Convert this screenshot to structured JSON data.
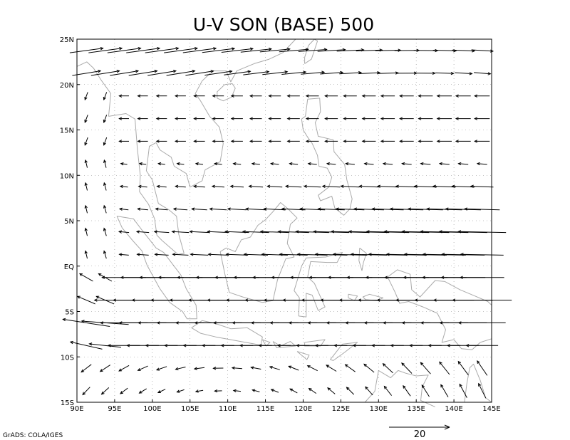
{
  "title": "U-V SON (BASE) 500",
  "credit": "GrADS: COLA/IGES",
  "reference_vector": {
    "label": "20",
    "magnitude": 20
  },
  "map": {
    "lon_range": [
      90,
      145
    ],
    "lat_range": [
      -15,
      25
    ],
    "lon_ticks": [
      {
        "value": 90,
        "label": "90E"
      },
      {
        "value": 95,
        "label": "95E"
      },
      {
        "value": 100,
        "label": "100E"
      },
      {
        "value": 105,
        "label": "105E"
      },
      {
        "value": 110,
        "label": "110E"
      },
      {
        "value": 115,
        "label": "115E"
      },
      {
        "value": 120,
        "label": "120E"
      },
      {
        "value": 125,
        "label": "125E"
      },
      {
        "value": 130,
        "label": "130E"
      },
      {
        "value": 135,
        "label": "135E"
      },
      {
        "value": 140,
        "label": "140E"
      },
      {
        "value": 145,
        "label": "145E"
      }
    ],
    "lat_ticks": [
      {
        "value": 25,
        "label": "25N"
      },
      {
        "value": 20,
        "label": "20N"
      },
      {
        "value": 15,
        "label": "15N"
      },
      {
        "value": 10,
        "label": "10N"
      },
      {
        "value": 5,
        "label": "5N"
      },
      {
        "value": 0,
        "label": "EQ"
      },
      {
        "value": -5,
        "label": "5S"
      },
      {
        "value": -10,
        "label": "10S"
      },
      {
        "value": -15,
        "label": "15S"
      }
    ],
    "grid_lines": "dotted",
    "vector_grid_spacing_deg": 2.5,
    "coast_color": "#aaaaaa"
  }
}
